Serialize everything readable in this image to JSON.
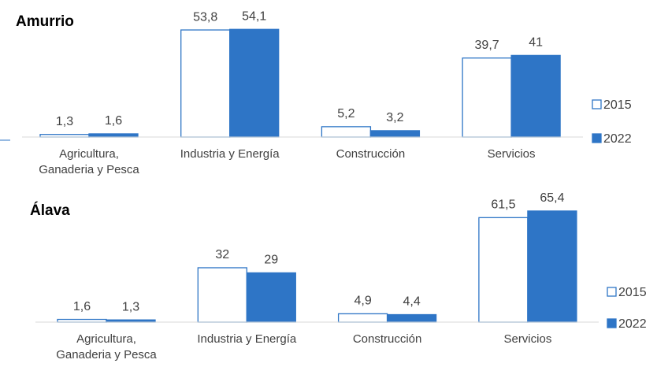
{
  "chart_data": [
    {
      "type": "bar",
      "title": "Amurrio",
      "categories": [
        "Agricultura,\nGanaderia y Pesca",
        "Industria y Energía",
        "Construcción",
        "Servicios"
      ],
      "series": [
        {
          "name": "2015",
          "color": "#ffffff",
          "values": [
            1.3,
            53.8,
            5.2,
            39.7
          ],
          "value_labels": [
            "1,3",
            "53,8",
            "5,2",
            "39,7"
          ]
        },
        {
          "name": "2022",
          "color": "#2e75c6",
          "values": [
            1.6,
            54.1,
            3.2,
            41
          ],
          "value_labels": [
            "1,6",
            "54,1",
            "3,2",
            "41"
          ]
        }
      ],
      "ylim": [
        0,
        55
      ]
    },
    {
      "type": "bar",
      "title": "Álava",
      "categories": [
        "Agricultura,\nGanaderia y Pesca",
        "Industria y Energía",
        "Construcción",
        "Servicios"
      ],
      "series": [
        {
          "name": "2015",
          "color": "#ffffff",
          "values": [
            1.6,
            32,
            4.9,
            61.5
          ],
          "value_labels": [
            "1,6",
            "32",
            "4,9",
            "61,5"
          ]
        },
        {
          "name": "2022",
          "color": "#2e75c6",
          "values": [
            1.3,
            29,
            4.4,
            65.4
          ],
          "value_labels": [
            "1,3",
            "29",
            "4,4",
            "65,4"
          ]
        }
      ],
      "ylim": [
        0,
        70
      ]
    }
  ]
}
